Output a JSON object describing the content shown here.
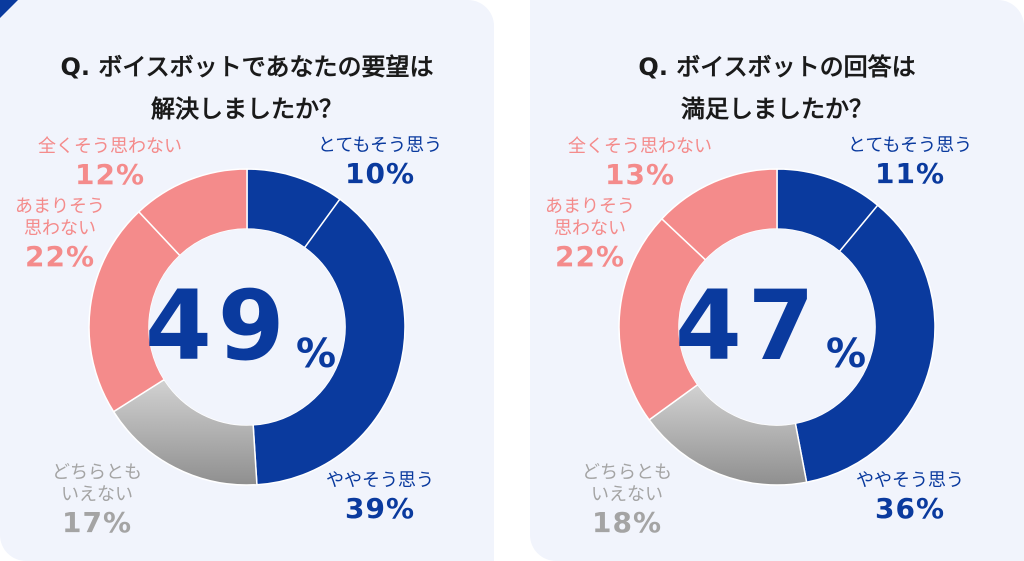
{
  "colors": {
    "very_agree": "#0a3a9e",
    "somewhat_agree": "#0a3a9e",
    "neutral": "#a4a4a4",
    "somewhat_disagree": "#f48b8b",
    "strongly_disagree": "#f48b8b",
    "panel_bg": "#f1f4fc"
  },
  "chart_data": [
    {
      "type": "pie",
      "title_line1": "Q. ボイスボットであなたの要望は",
      "title_line2": "解決しましたか？",
      "center_value": "49",
      "center_unit": "%",
      "slices": [
        {
          "label": "とてもそう思う",
          "value": 10,
          "display": "10%"
        },
        {
          "label": "ややそう思う",
          "value": 39,
          "display": "39%"
        },
        {
          "label_line1": "どちらとも",
          "label_line2": "いえない",
          "value": 17,
          "display": "17%"
        },
        {
          "label_line1": "あまりそう",
          "label_line2": "思わない",
          "value": 22,
          "display": "22%"
        },
        {
          "label": "全くそう思わない",
          "value": 12,
          "display": "12%"
        }
      ]
    },
    {
      "type": "pie",
      "title_line1": "Q. ボイスボットの回答は",
      "title_line2": "満足しましたか？",
      "center_value": "47",
      "center_unit": "%",
      "slices": [
        {
          "label": "とてもそう思う",
          "value": 11,
          "display": "11%"
        },
        {
          "label": "ややそう思う",
          "value": 36,
          "display": "36%"
        },
        {
          "label_line1": "どちらとも",
          "label_line2": "いえない",
          "value": 18,
          "display": "18%"
        },
        {
          "label_line1": "あまりそう",
          "label_line2": "思わない",
          "value": 22,
          "display": "22%"
        },
        {
          "label": "全くそう思わない",
          "value": 13,
          "display": "13%"
        }
      ]
    }
  ]
}
